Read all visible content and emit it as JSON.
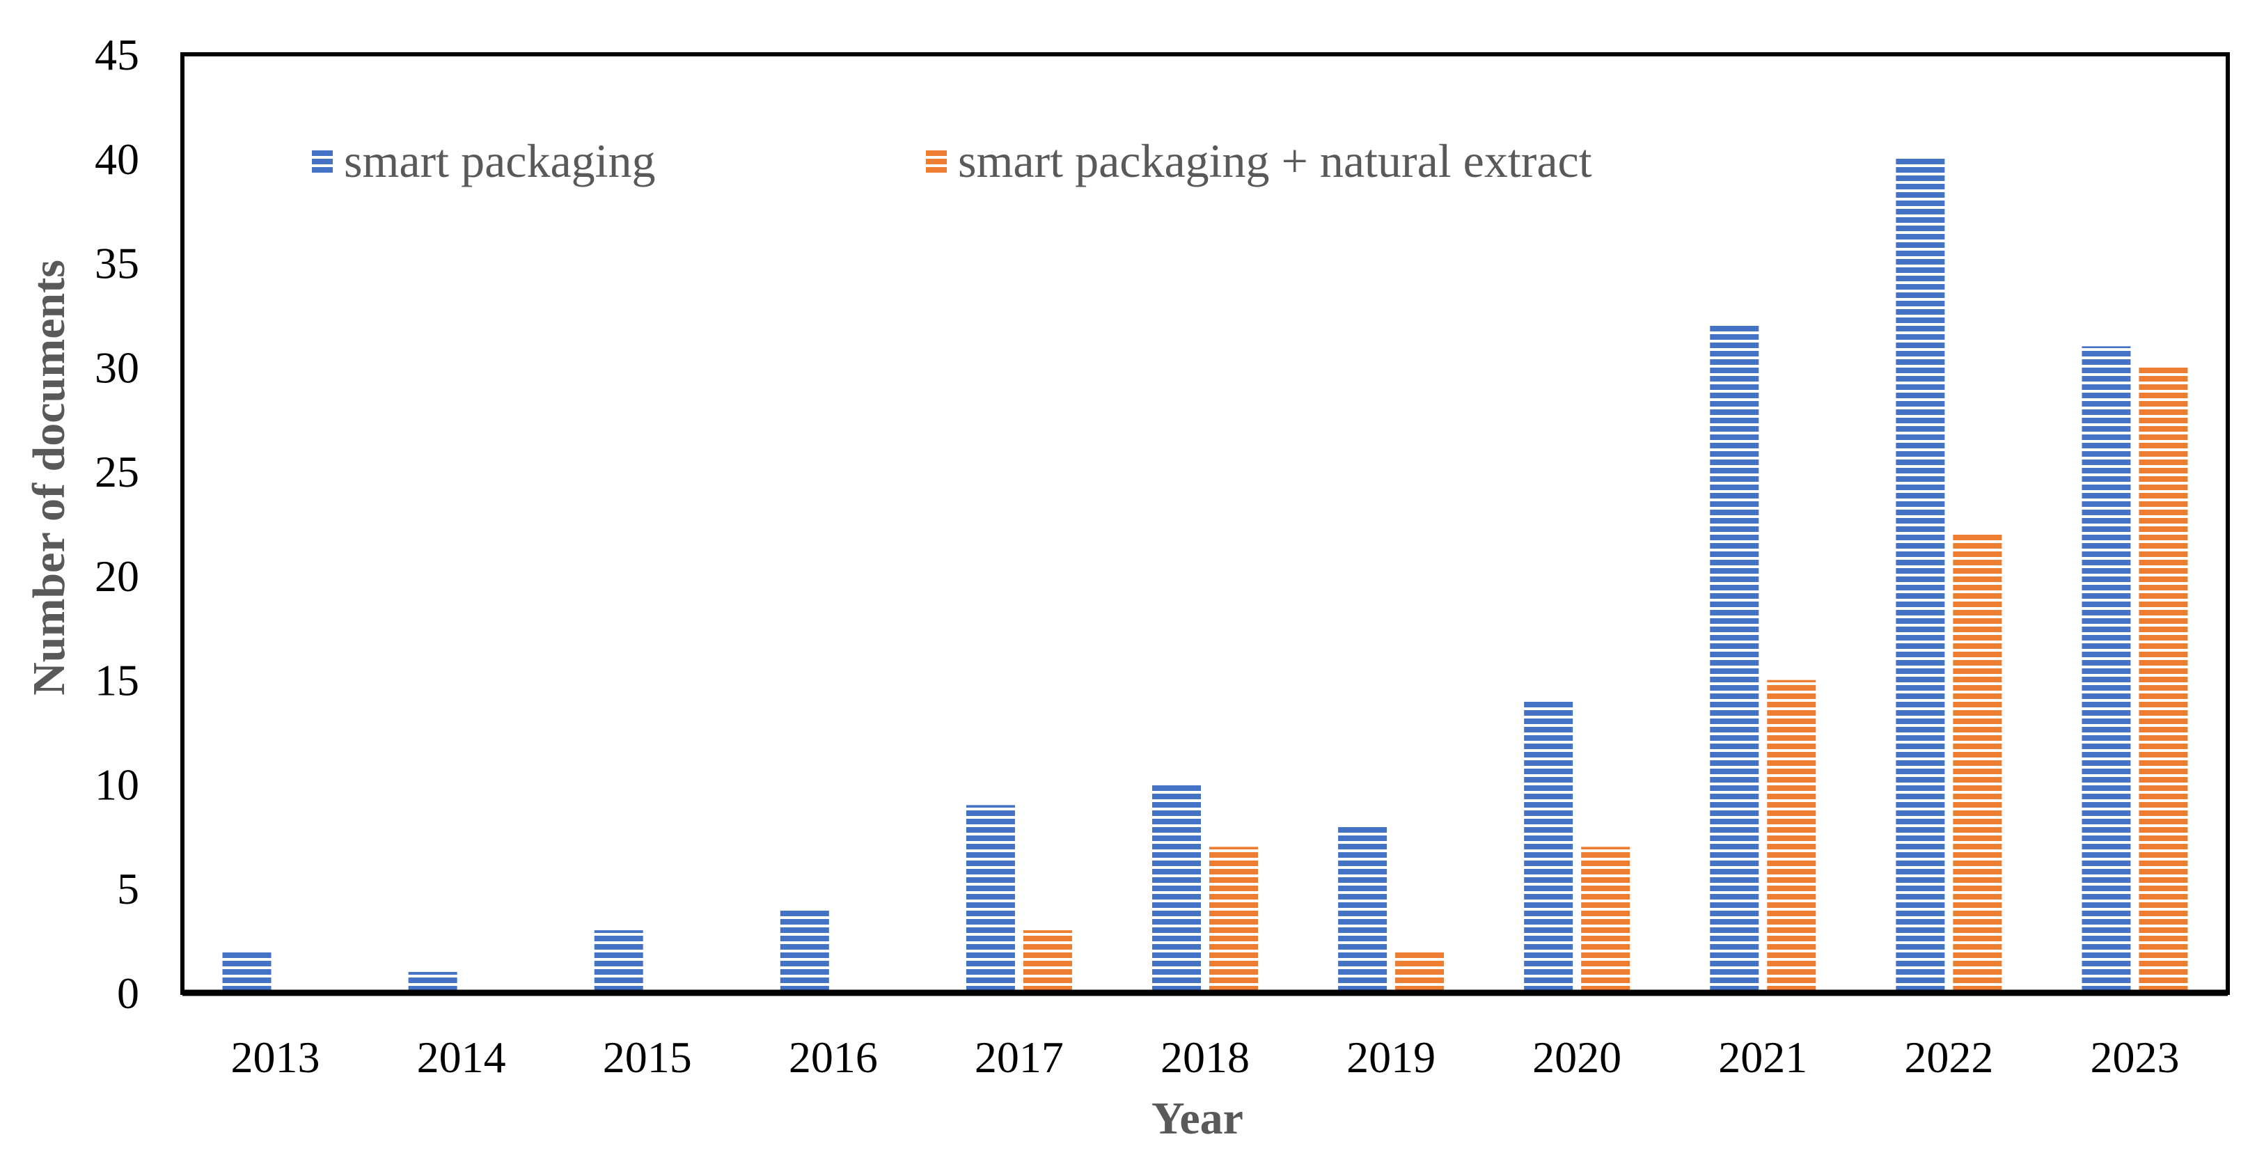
{
  "chart_data": {
    "type": "bar",
    "title": "",
    "xlabel": "Year",
    "ylabel": "Number of documents",
    "ylim": [
      0,
      45
    ],
    "yticks": [
      0,
      5,
      10,
      15,
      20,
      25,
      30,
      35,
      40,
      45
    ],
    "grid": false,
    "legend_position": "top",
    "categories": [
      "2013",
      "2014",
      "2015",
      "2016",
      "2017",
      "2018",
      "2019",
      "2020",
      "2021",
      "2022",
      "2023"
    ],
    "series": [
      {
        "name": "smart packaging",
        "color": "#4472C4",
        "values": [
          2,
          1,
          3,
          4,
          9,
          10,
          8,
          14,
          32,
          40,
          31
        ]
      },
      {
        "name": "smart packaging + natural extract",
        "color": "#ED7D31",
        "values": [
          0,
          0,
          0,
          0,
          3,
          7,
          2,
          7,
          15,
          22,
          30
        ]
      }
    ]
  }
}
